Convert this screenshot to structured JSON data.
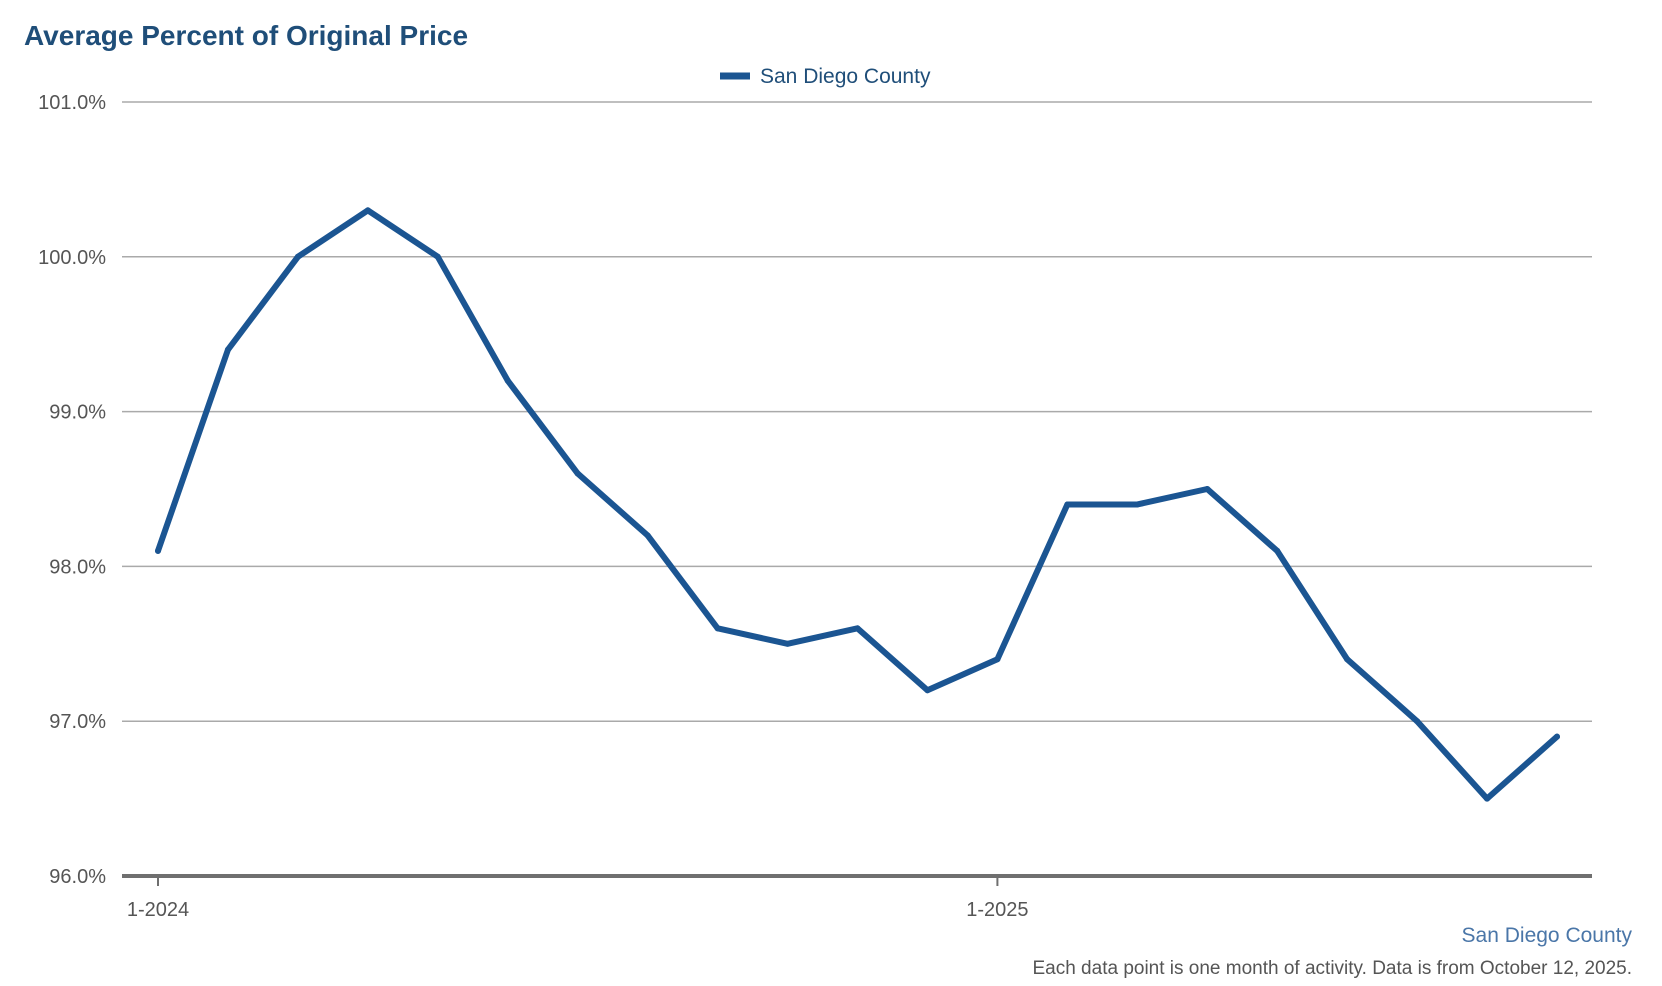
{
  "chart_data": {
    "type": "line",
    "title": "Average Percent of Original Price",
    "legend": {
      "entries": [
        "San Diego County"
      ],
      "placement": "top-center"
    },
    "x": [
      "1-2024",
      "2-2024",
      "3-2024",
      "4-2024",
      "5-2024",
      "6-2024",
      "7-2024",
      "8-2024",
      "9-2024",
      "10-2024",
      "11-2024",
      "12-2024",
      "1-2025",
      "2-2025",
      "3-2025",
      "4-2025",
      "5-2025",
      "6-2025",
      "7-2025",
      "8-2025",
      "9-2025"
    ],
    "x_tick_labels": [
      "1-2024",
      "1-2025"
    ],
    "series": [
      {
        "name": "San Diego County",
        "color": "#1b5592",
        "values": [
          98.1,
          99.4,
          100.0,
          100.3,
          100.0,
          99.2,
          98.6,
          98.2,
          97.6,
          97.5,
          97.6,
          97.2,
          97.4,
          98.4,
          98.4,
          98.5,
          98.1,
          97.4,
          97.0,
          96.5,
          96.9
        ]
      }
    ],
    "ylim": [
      96.0,
      101.0
    ],
    "y_ticks": [
      96.0,
      97.0,
      98.0,
      99.0,
      100.0,
      101.0
    ],
    "y_tick_labels": [
      "96.0%",
      "97.0%",
      "98.0%",
      "99.0%",
      "100.0%",
      "101.0%"
    ],
    "grid": true,
    "xlabel": "",
    "ylabel": ""
  },
  "footer": {
    "source": "San Diego County",
    "note": "Each data point is one month of activity. Data is from October 12, 2025."
  }
}
